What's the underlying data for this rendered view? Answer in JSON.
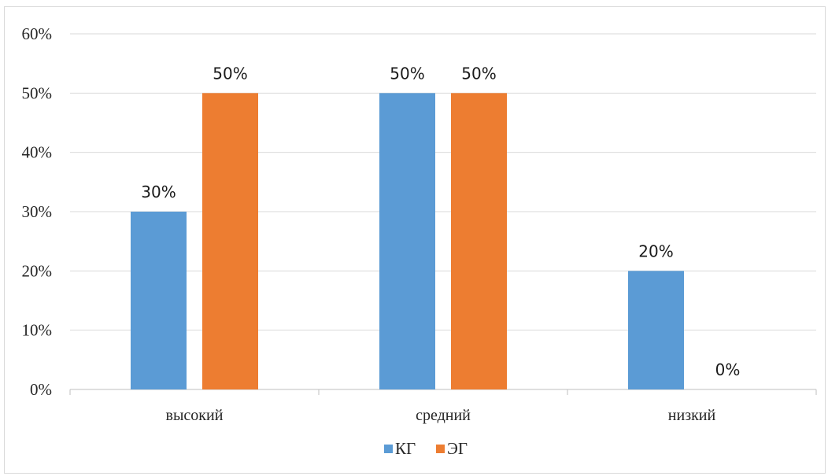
{
  "chart_data": {
    "type": "bar",
    "title": "",
    "xlabel": "",
    "ylabel": "",
    "categories": [
      "высокий",
      "средний",
      "низкий"
    ],
    "series": [
      {
        "name": "КГ",
        "color": "#5b9bd5",
        "values": [
          30,
          50,
          20
        ],
        "labels": [
          "30%",
          "50%",
          "20%"
        ]
      },
      {
        "name": "ЭГ",
        "color": "#ed7d31",
        "values": [
          50,
          50,
          0
        ],
        "labels": [
          "50%",
          "50%",
          "0%"
        ]
      }
    ],
    "ylim": [
      0,
      60
    ],
    "yticks": [
      0,
      10,
      20,
      30,
      40,
      50,
      60
    ],
    "ytick_labels": [
      "0%",
      "10%",
      "20%",
      "30%",
      "40%",
      "50%",
      "60%"
    ],
    "grid": true,
    "gridline_color": "#d9d9d9",
    "legend_position": "bottom"
  }
}
